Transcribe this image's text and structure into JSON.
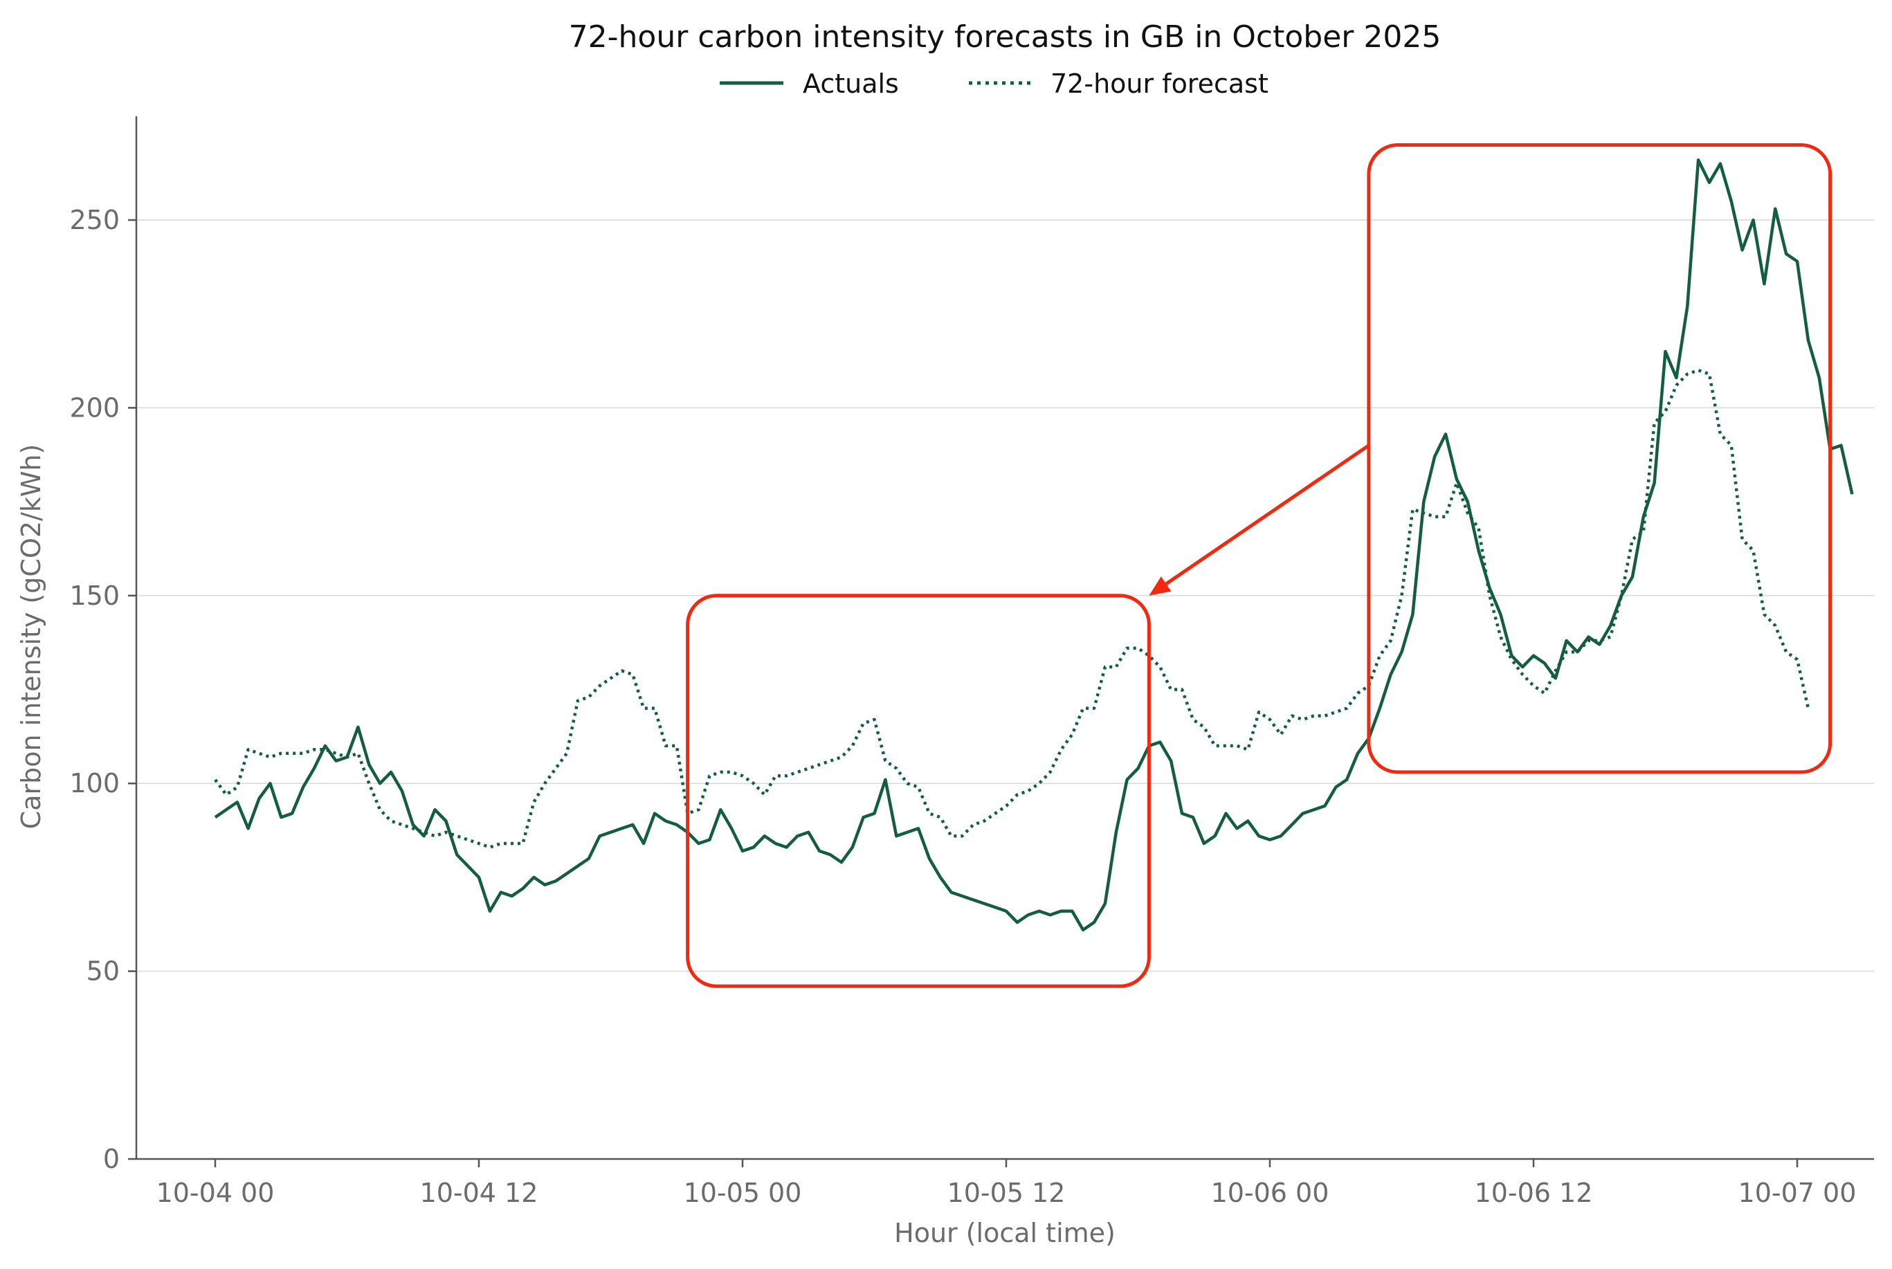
{
  "colors": {
    "series": "#135e3f",
    "annotation": "#f2290f",
    "grid": "#d9d9d9",
    "axis": "#555555",
    "text": "#6b6b6b"
  },
  "chart_data": {
    "type": "line",
    "title": "72-hour carbon intensity forecasts in GB in October 2025",
    "xlabel": "Hour (local time)",
    "ylabel": "Carbon intensity (gCO2/kWh)",
    "xlim": [
      -0.5,
      73.5
    ],
    "ylim": [
      0,
      278
    ],
    "yticks": [
      0,
      50,
      100,
      150,
      200,
      250
    ],
    "xticks": [
      {
        "hour": 0,
        "label": "10-04 00"
      },
      {
        "hour": 12,
        "label": "10-04 12"
      },
      {
        "hour": 24,
        "label": "10-05 00"
      },
      {
        "hour": 36,
        "label": "10-05 12"
      },
      {
        "hour": 48,
        "label": "10-06 00"
      },
      {
        "hour": 60,
        "label": "10-06 12"
      },
      {
        "hour": 72,
        "label": "10-07 00"
      }
    ],
    "grid": "horizontal",
    "legend": "top-center",
    "series": [
      {
        "name": "Actuals",
        "style": "solid",
        "points": [
          [
            0,
            91
          ],
          [
            0.5,
            93
          ],
          [
            1,
            95
          ],
          [
            1.5,
            88
          ],
          [
            2,
            96
          ],
          [
            2.5,
            100
          ],
          [
            3,
            91
          ],
          [
            3.5,
            92
          ],
          [
            4,
            99
          ],
          [
            4.5,
            104
          ],
          [
            5,
            110
          ],
          [
            5.5,
            106
          ],
          [
            6,
            107
          ],
          [
            6.5,
            115
          ],
          [
            7,
            105
          ],
          [
            7.5,
            100
          ],
          [
            8,
            103
          ],
          [
            8.5,
            98
          ],
          [
            9,
            89
          ],
          [
            9.5,
            86
          ],
          [
            10,
            93
          ],
          [
            10.5,
            90
          ],
          [
            11,
            81
          ],
          [
            11.5,
            78
          ],
          [
            12,
            75
          ],
          [
            12.5,
            66
          ],
          [
            13,
            71
          ],
          [
            13.5,
            70
          ],
          [
            14,
            72
          ],
          [
            14.5,
            75
          ],
          [
            15,
            73
          ],
          [
            15.5,
            74
          ],
          [
            16,
            76
          ],
          [
            16.5,
            78
          ],
          [
            17,
            80
          ],
          [
            17.5,
            86
          ],
          [
            18,
            87
          ],
          [
            18.5,
            88
          ],
          [
            19,
            89
          ],
          [
            19.5,
            84
          ],
          [
            20,
            92
          ],
          [
            20.5,
            90
          ],
          [
            21,
            89
          ],
          [
            21.5,
            87
          ],
          [
            22,
            84
          ],
          [
            22.5,
            85
          ],
          [
            23,
            93
          ],
          [
            23.5,
            88
          ],
          [
            24,
            82
          ],
          [
            24.5,
            83
          ],
          [
            25,
            86
          ],
          [
            25.5,
            84
          ],
          [
            26,
            83
          ],
          [
            26.5,
            86
          ],
          [
            27,
            87
          ],
          [
            27.5,
            82
          ],
          [
            28,
            81
          ],
          [
            28.5,
            79
          ],
          [
            29,
            83
          ],
          [
            29.5,
            91
          ],
          [
            30,
            92
          ],
          [
            30.5,
            101
          ],
          [
            31,
            86
          ],
          [
            31.5,
            87
          ],
          [
            32,
            88
          ],
          [
            32.5,
            80
          ],
          [
            33,
            75
          ],
          [
            33.5,
            71
          ],
          [
            34,
            70
          ],
          [
            34.5,
            69
          ],
          [
            35,
            68
          ],
          [
            35.5,
            67
          ],
          [
            36,
            66
          ],
          [
            36.5,
            63
          ],
          [
            37,
            65
          ],
          [
            37.5,
            66
          ],
          [
            38,
            65
          ],
          [
            38.5,
            66
          ],
          [
            39,
            66
          ],
          [
            39.5,
            61
          ],
          [
            40,
            63
          ],
          [
            40.5,
            68
          ],
          [
            41,
            87
          ],
          [
            41.5,
            101
          ],
          [
            42,
            104
          ],
          [
            42.5,
            110
          ],
          [
            43,
            111
          ],
          [
            43.5,
            106
          ],
          [
            44,
            92
          ],
          [
            44.5,
            91
          ],
          [
            45,
            84
          ],
          [
            45.5,
            86
          ],
          [
            46,
            92
          ],
          [
            46.5,
            88
          ],
          [
            47,
            90
          ],
          [
            47.5,
            86
          ],
          [
            48,
            85
          ],
          [
            48.5,
            86
          ],
          [
            49,
            89
          ],
          [
            49.5,
            92
          ],
          [
            50,
            93
          ],
          [
            50.5,
            94
          ],
          [
            51,
            99
          ],
          [
            51.5,
            101
          ],
          [
            52,
            108
          ],
          [
            52.5,
            112
          ],
          [
            53,
            120
          ],
          [
            53.5,
            129
          ],
          [
            54,
            135
          ],
          [
            54.5,
            145
          ],
          [
            55,
            175
          ],
          [
            55.5,
            187
          ],
          [
            56,
            193
          ],
          [
            56.5,
            181
          ],
          [
            57,
            175
          ],
          [
            57.5,
            162
          ],
          [
            58,
            152
          ],
          [
            58.5,
            145
          ],
          [
            59,
            134
          ],
          [
            59.5,
            131
          ],
          [
            60,
            134
          ],
          [
            60.5,
            132
          ],
          [
            61,
            128
          ],
          [
            61.5,
            138
          ],
          [
            62,
            135
          ],
          [
            62.5,
            139
          ],
          [
            63,
            137
          ],
          [
            63.5,
            142
          ],
          [
            64,
            150
          ],
          [
            64.5,
            155
          ],
          [
            65,
            171
          ],
          [
            65.5,
            180
          ],
          [
            66,
            215
          ],
          [
            66.5,
            208
          ],
          [
            67,
            227
          ],
          [
            67.5,
            266
          ],
          [
            68,
            260
          ],
          [
            68.5,
            265
          ],
          [
            69,
            255
          ],
          [
            69.5,
            242
          ],
          [
            70,
            250
          ],
          [
            70.5,
            233
          ],
          [
            71,
            253
          ],
          [
            71.5,
            241
          ],
          [
            72,
            239
          ],
          [
            72.5,
            218
          ],
          [
            73,
            208
          ],
          [
            73.5,
            189
          ],
          [
            74,
            190
          ],
          [
            74.5,
            177
          ]
        ]
      },
      {
        "name": "72-hour forecast",
        "style": "dotted",
        "points": [
          [
            0,
            101
          ],
          [
            0.5,
            97
          ],
          [
            1,
            99
          ],
          [
            1.5,
            109
          ],
          [
            2,
            108
          ],
          [
            2.5,
            107
          ],
          [
            3,
            108
          ],
          [
            3.5,
            108
          ],
          [
            4,
            108
          ],
          [
            4.5,
            109
          ],
          [
            5,
            109
          ],
          [
            5.5,
            108
          ],
          [
            6,
            107
          ],
          [
            6.5,
            108
          ],
          [
            7,
            100
          ],
          [
            7.5,
            93
          ],
          [
            8,
            90
          ],
          [
            8.5,
            89
          ],
          [
            9,
            88
          ],
          [
            9.5,
            87
          ],
          [
            10,
            86
          ],
          [
            10.5,
            87
          ],
          [
            11,
            86
          ],
          [
            11.5,
            85
          ],
          [
            12,
            84
          ],
          [
            12.5,
            83
          ],
          [
            13,
            84
          ],
          [
            13.5,
            84
          ],
          [
            14,
            84
          ],
          [
            14.5,
            95
          ],
          [
            15,
            100
          ],
          [
            15.5,
            104
          ],
          [
            16,
            108
          ],
          [
            16.5,
            122
          ],
          [
            17,
            123
          ],
          [
            17.5,
            126
          ],
          [
            18,
            128
          ],
          [
            18.5,
            130
          ],
          [
            19,
            129
          ],
          [
            19.5,
            120
          ],
          [
            20,
            120
          ],
          [
            20.5,
            110
          ],
          [
            21,
            110
          ],
          [
            21.5,
            92
          ],
          [
            22,
            93
          ],
          [
            22.5,
            102
          ],
          [
            23,
            103
          ],
          [
            23.5,
            103
          ],
          [
            24,
            102
          ],
          [
            24.5,
            100
          ],
          [
            25,
            97
          ],
          [
            25.5,
            102
          ],
          [
            26,
            102
          ],
          [
            26.5,
            103
          ],
          [
            27,
            104
          ],
          [
            27.5,
            105
          ],
          [
            28,
            106
          ],
          [
            28.5,
            107
          ],
          [
            29,
            110
          ],
          [
            29.5,
            116
          ],
          [
            30,
            117
          ],
          [
            30.5,
            106
          ],
          [
            31,
            104
          ],
          [
            31.5,
            100
          ],
          [
            32,
            99
          ],
          [
            32.5,
            92
          ],
          [
            33,
            91
          ],
          [
            33.5,
            86
          ],
          [
            34,
            86
          ],
          [
            34.5,
            89
          ],
          [
            35,
            90
          ],
          [
            35.5,
            92
          ],
          [
            36,
            94
          ],
          [
            36.5,
            97
          ],
          [
            37,
            98
          ],
          [
            37.5,
            100
          ],
          [
            38,
            103
          ],
          [
            38.5,
            109
          ],
          [
            39,
            113
          ],
          [
            39.5,
            120
          ],
          [
            40,
            120
          ],
          [
            40.5,
            131
          ],
          [
            41,
            131
          ],
          [
            41.5,
            136
          ],
          [
            42,
            136
          ],
          [
            42.5,
            134
          ],
          [
            43,
            131
          ],
          [
            43.5,
            125
          ],
          [
            44,
            125
          ],
          [
            44.5,
            117
          ],
          [
            45,
            115
          ],
          [
            45.5,
            110
          ],
          [
            46,
            110
          ],
          [
            46.5,
            110
          ],
          [
            47,
            109
          ],
          [
            47.5,
            119
          ],
          [
            48,
            117
          ],
          [
            48.5,
            113
          ],
          [
            49,
            118
          ],
          [
            49.5,
            117
          ],
          [
            50,
            118
          ],
          [
            50.5,
            118
          ],
          [
            51,
            119
          ],
          [
            51.5,
            120
          ],
          [
            52,
            124
          ],
          [
            52.5,
            126
          ],
          [
            53,
            134
          ],
          [
            53.5,
            138
          ],
          [
            54,
            150
          ],
          [
            54.5,
            173
          ],
          [
            55,
            172
          ],
          [
            55.5,
            171
          ],
          [
            56,
            171
          ],
          [
            56.5,
            180
          ],
          [
            57,
            172
          ],
          [
            57.5,
            168
          ],
          [
            58,
            150
          ],
          [
            58.5,
            139
          ],
          [
            59,
            133
          ],
          [
            59.5,
            129
          ],
          [
            60,
            126
          ],
          [
            60.5,
            124
          ],
          [
            61,
            130
          ],
          [
            61.5,
            135
          ],
          [
            62,
            135
          ],
          [
            62.5,
            138
          ],
          [
            63,
            138
          ],
          [
            63.5,
            139
          ],
          [
            64,
            150
          ],
          [
            64.5,
            165
          ],
          [
            65,
            167
          ],
          [
            65.5,
            196
          ],
          [
            66,
            199
          ],
          [
            66.5,
            206
          ],
          [
            67,
            209
          ],
          [
            67.5,
            210
          ],
          [
            68,
            209
          ],
          [
            68.5,
            193
          ],
          [
            69,
            190
          ],
          [
            69.5,
            165
          ],
          [
            70,
            162
          ],
          [
            70.5,
            145
          ],
          [
            71,
            142
          ],
          [
            71.5,
            135
          ],
          [
            72,
            133
          ],
          [
            72.5,
            120
          ]
        ]
      }
    ],
    "annotations": [
      {
        "type": "box",
        "x_range": [
          21.5,
          42.5
        ],
        "y_range": [
          46,
          150
        ]
      },
      {
        "type": "box",
        "x_range": [
          52.5,
          73.5
        ],
        "y_range": [
          103,
          270
        ]
      },
      {
        "type": "arrow",
        "from": [
          52.5,
          190
        ],
        "to": [
          42.5,
          150
        ]
      }
    ]
  }
}
